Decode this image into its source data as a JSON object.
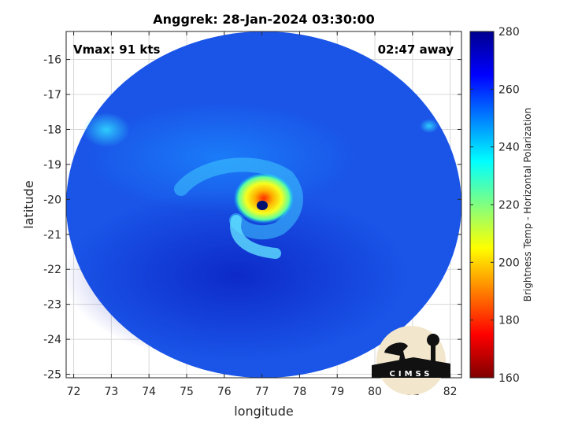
{
  "chart_data": {
    "type": "heatmap",
    "title": "Anggrek: 28-Jan-2024 03:30:00",
    "xlabel": "longitude",
    "ylabel": "latitude",
    "xlim": [
      71.8,
      82.3
    ],
    "ylim": [
      -25.1,
      -15.2
    ],
    "x_ticks": [
      72,
      73,
      74,
      75,
      76,
      77,
      78,
      79,
      80,
      81,
      82
    ],
    "y_ticks": [
      -16,
      -17,
      -18,
      -19,
      -20,
      -21,
      -22,
      -23,
      -24,
      -25
    ],
    "grid": true,
    "annotations": {
      "vmax": "Vmax: 91 kts",
      "offset": "02:47 away"
    },
    "storm_center": {
      "lon": 77.0,
      "lat": -20.1
    },
    "colorbar": {
      "label": "Brightness Temp - Horizontal Polarization",
      "range": [
        160,
        280
      ],
      "ticks": [
        160,
        180,
        200,
        220,
        240,
        260,
        280
      ],
      "colormap": [
        "#7f0000",
        "#ff0000",
        "#ff8000",
        "#ffff00",
        "#80ff80",
        "#00ffff",
        "#0080ff",
        "#0000ff",
        "#00008f"
      ]
    },
    "logo_text": "CIMSS"
  }
}
